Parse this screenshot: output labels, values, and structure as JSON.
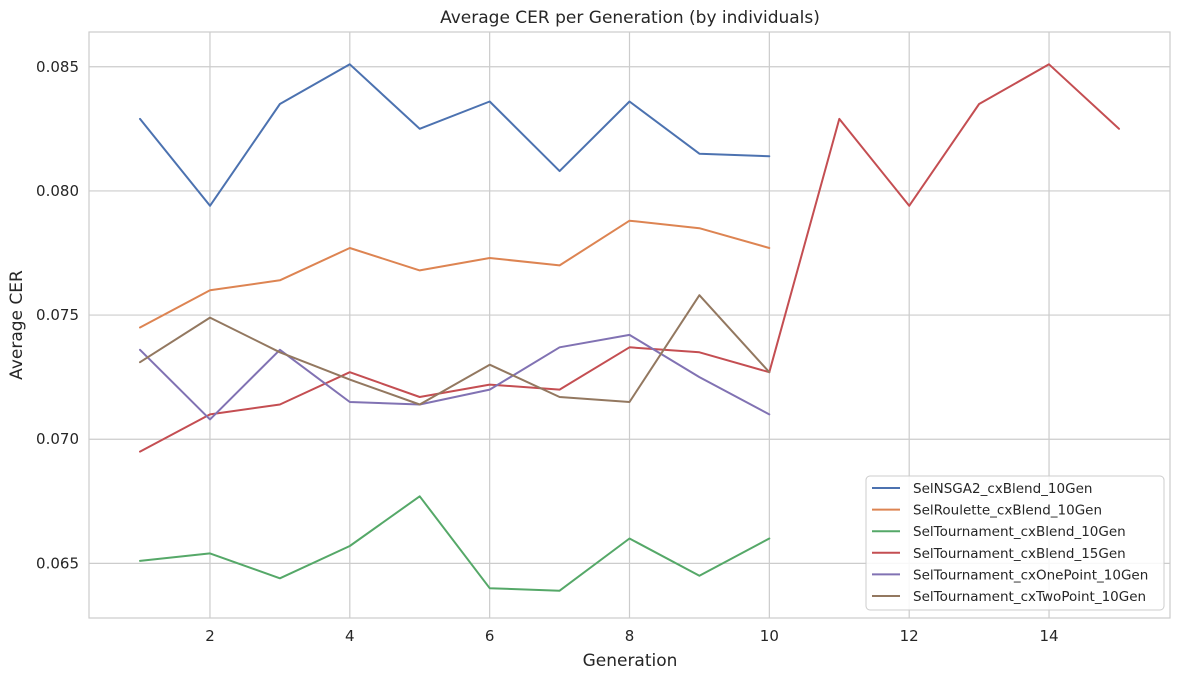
{
  "chart_data": {
    "type": "line",
    "title": "Average CER per Generation (by individuals)",
    "xlabel": "Generation",
    "ylabel": "Average CER",
    "xlim": [
      0.27,
      15.73
    ],
    "ylim": [
      0.0628,
      0.0864
    ],
    "xticks": [
      2,
      4,
      6,
      8,
      10,
      12,
      14
    ],
    "yticks": [
      0.065,
      0.07,
      0.075,
      0.08,
      0.085
    ],
    "ytick_labels": [
      "0.065",
      "0.070",
      "0.075",
      "0.080",
      "0.085"
    ],
    "grid": true,
    "legend_position": "lower-right",
    "series": [
      {
        "name": "SelNSGA2_cxBlend_10Gen",
        "color": "#4c72b0",
        "x": [
          1,
          2,
          3,
          4,
          5,
          6,
          7,
          8,
          9,
          10
        ],
        "y": [
          0.0829,
          0.0794,
          0.0835,
          0.0851,
          0.0825,
          0.0836,
          0.0808,
          0.0836,
          0.0815,
          0.0814
        ]
      },
      {
        "name": "SelRoulette_cxBlend_10Gen",
        "color": "#dd8452",
        "x": [
          1,
          2,
          3,
          4,
          5,
          6,
          7,
          8,
          9,
          10
        ],
        "y": [
          0.0745,
          0.076,
          0.0764,
          0.0777,
          0.0768,
          0.0773,
          0.077,
          0.0788,
          0.0785,
          0.0777
        ]
      },
      {
        "name": "SelTournament_cxBlend_10Gen",
        "color": "#55a868",
        "x": [
          1,
          2,
          3,
          4,
          5,
          6,
          7,
          8,
          9,
          10
        ],
        "y": [
          0.0651,
          0.0654,
          0.0644,
          0.0657,
          0.0677,
          0.064,
          0.0639,
          0.066,
          0.0645,
          0.066
        ]
      },
      {
        "name": "SelTournament_cxBlend_15Gen",
        "color": "#c44e52",
        "x": [
          1,
          2,
          3,
          4,
          5,
          6,
          7,
          8,
          9,
          10,
          11,
          12,
          13,
          14,
          15
        ],
        "y": [
          0.0695,
          0.071,
          0.0714,
          0.0727,
          0.0717,
          0.0722,
          0.072,
          0.0737,
          0.0735,
          0.0727,
          0.0829,
          0.0794,
          0.0835,
          0.0851,
          0.0825
        ]
      },
      {
        "name": "SelTournament_cxOnePoint_10Gen",
        "color": "#8172b3",
        "x": [
          1,
          2,
          3,
          4,
          5,
          6,
          7,
          8,
          9,
          10
        ],
        "y": [
          0.0736,
          0.0708,
          0.0736,
          0.0715,
          0.0714,
          0.072,
          0.0737,
          0.0742,
          0.0725,
          0.071
        ]
      },
      {
        "name": "SelTournament_cxTwoPoint_10Gen",
        "color": "#937860",
        "x": [
          1,
          2,
          3,
          4,
          5,
          6,
          7,
          8,
          9,
          10
        ],
        "y": [
          0.0731,
          0.0749,
          0.0735,
          0.0724,
          0.0714,
          0.073,
          0.0717,
          0.0715,
          0.0758,
          0.0727
        ]
      }
    ]
  }
}
